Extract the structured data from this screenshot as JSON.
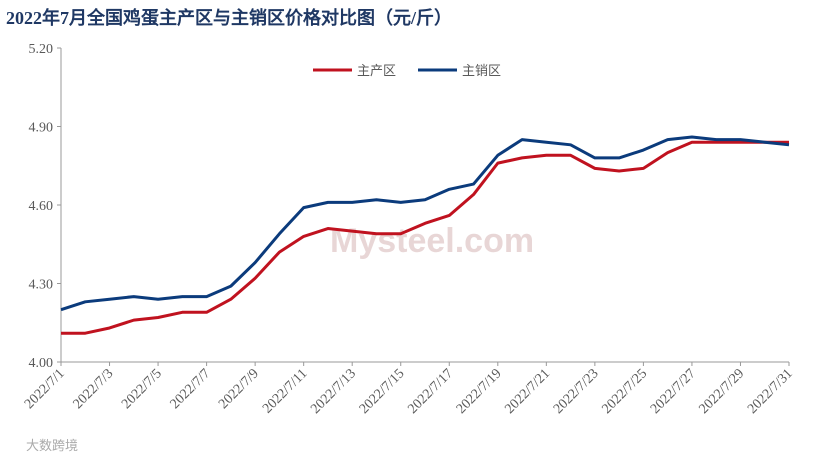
{
  "chart_data": {
    "type": "line",
    "title": "2022年7月全国鸡蛋主产区与主销区价格对比图（元/斤）",
    "categories": [
      "2022/7/1",
      null,
      "2022/7/3",
      null,
      "2022/7/5",
      null,
      "2022/7/7",
      null,
      "2022/7/9",
      null,
      "2022/7/11",
      null,
      "2022/7/13",
      null,
      "2022/7/15",
      null,
      "2022/7/17",
      null,
      "2022/7/19",
      null,
      "2022/7/21",
      null,
      "2022/7/23",
      null,
      "2022/7/25",
      null,
      "2022/7/27",
      null,
      "2022/7/29",
      null,
      "2022/7/31"
    ],
    "series": [
      {
        "name": "主产区",
        "color": "#c0121f",
        "values": [
          4.11,
          4.11,
          4.13,
          4.16,
          4.17,
          4.19,
          4.19,
          4.24,
          4.32,
          4.42,
          4.48,
          4.51,
          4.5,
          4.49,
          4.49,
          4.53,
          4.56,
          4.64,
          4.76,
          4.78,
          4.79,
          4.79,
          4.74,
          4.73,
          4.74,
          4.8,
          4.84,
          4.84,
          4.84,
          4.84,
          4.84
        ]
      },
      {
        "name": "主销区",
        "color": "#0b3b7c",
        "values": [
          4.2,
          4.23,
          4.24,
          4.25,
          4.24,
          4.25,
          4.25,
          4.29,
          4.38,
          4.49,
          4.59,
          4.61,
          4.61,
          4.62,
          4.61,
          4.62,
          4.66,
          4.68,
          4.79,
          4.85,
          4.84,
          4.83,
          4.78,
          4.78,
          4.81,
          4.85,
          4.86,
          4.85,
          4.85,
          4.84,
          4.83
        ]
      }
    ],
    "ylim": [
      4.0,
      5.2
    ],
    "yticks": [
      {
        "value": 4.0,
        "label": "4.00"
      },
      {
        "value": 4.3,
        "label": "4.30"
      },
      {
        "value": 4.6,
        "label": "4.60"
      },
      {
        "value": 4.9,
        "label": "4.90"
      },
      {
        "value": 5.2,
        "label": "5.20"
      }
    ],
    "grid": false,
    "legend": "top",
    "watermark": "Mysteel.com",
    "logo": "大数跨境"
  }
}
